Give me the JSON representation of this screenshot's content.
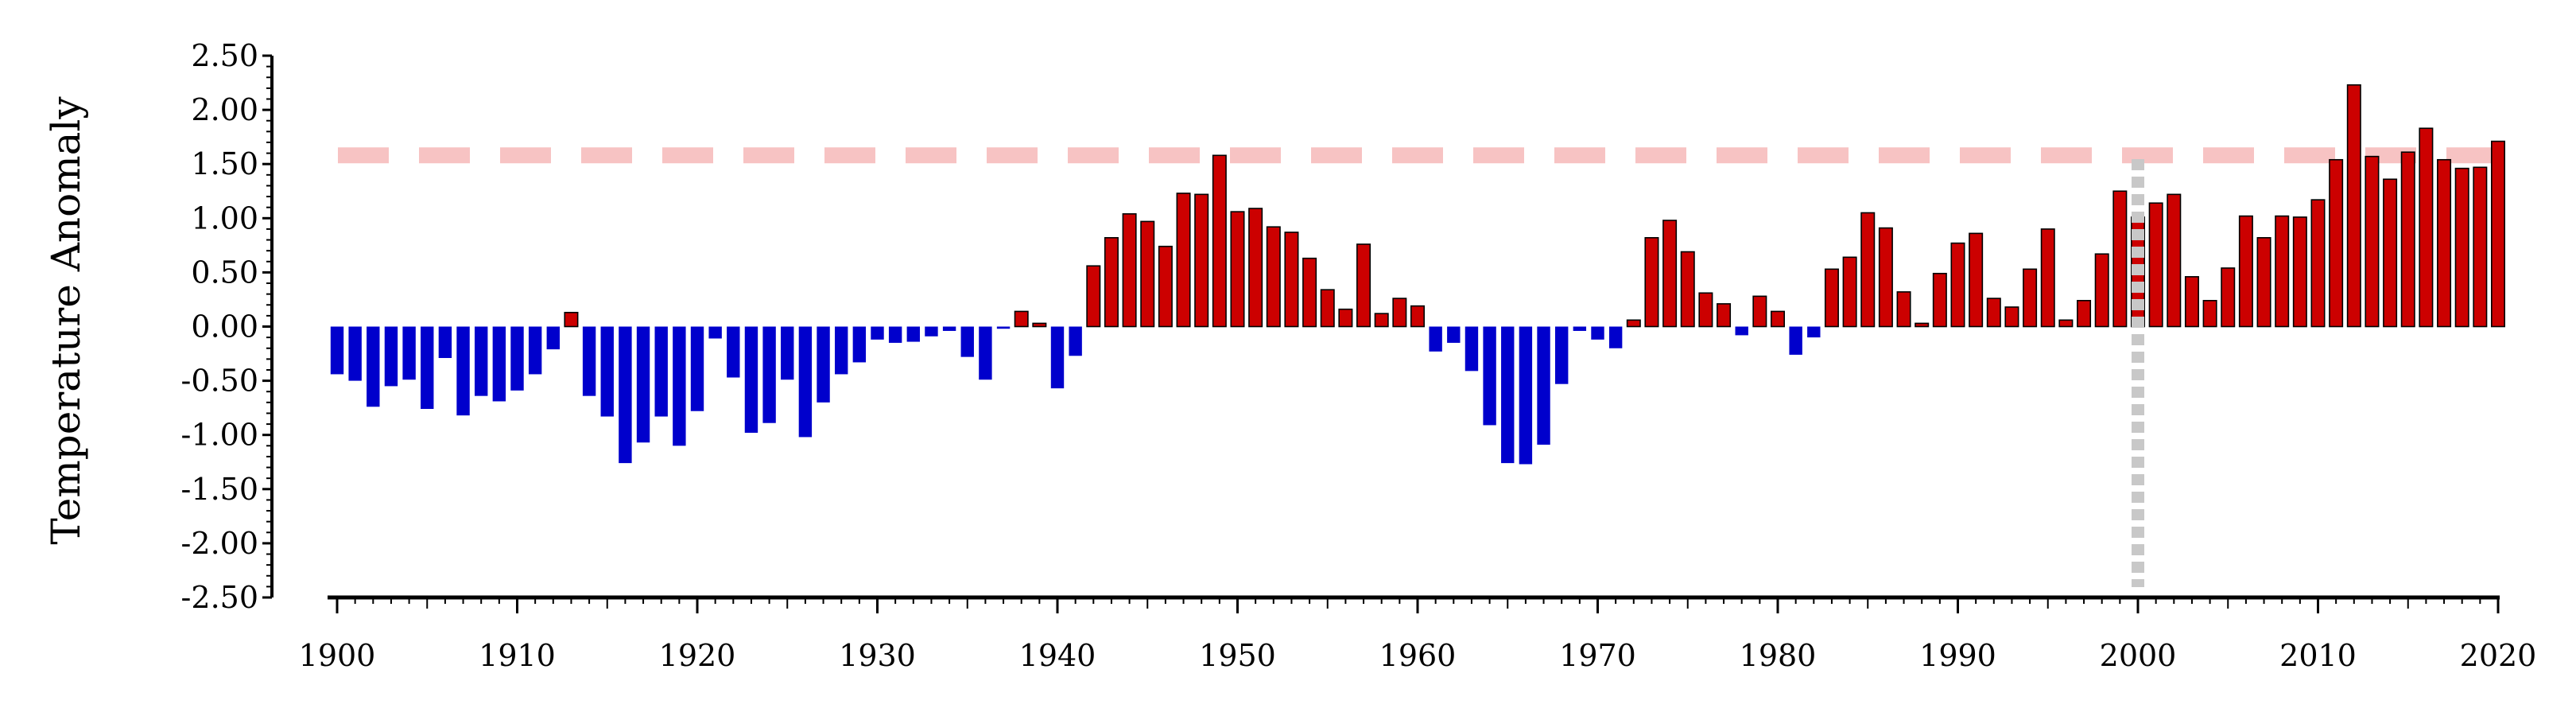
{
  "chart_data": {
    "type": "bar",
    "title": "",
    "xlabel": "",
    "ylabel": "Temperature Anomaly",
    "x": [
      1900,
      1901,
      1902,
      1903,
      1904,
      1905,
      1906,
      1907,
      1908,
      1909,
      1910,
      1911,
      1912,
      1913,
      1914,
      1915,
      1916,
      1917,
      1918,
      1919,
      1920,
      1921,
      1922,
      1923,
      1924,
      1925,
      1926,
      1927,
      1928,
      1929,
      1930,
      1931,
      1932,
      1933,
      1934,
      1935,
      1936,
      1937,
      1938,
      1939,
      1940,
      1941,
      1942,
      1943,
      1944,
      1945,
      1946,
      1947,
      1948,
      1949,
      1950,
      1951,
      1952,
      1953,
      1954,
      1955,
      1956,
      1957,
      1958,
      1959,
      1960,
      1961,
      1962,
      1963,
      1964,
      1965,
      1966,
      1967,
      1968,
      1969,
      1970,
      1971,
      1972,
      1973,
      1974,
      1975,
      1976,
      1977,
      1978,
      1979,
      1980,
      1981,
      1982,
      1983,
      1984,
      1985,
      1986,
      1987,
      1988,
      1989,
      1990,
      1991,
      1992,
      1993,
      1994,
      1995,
      1996,
      1997,
      1998,
      1999,
      2000,
      2001,
      2002,
      2003,
      2004,
      2005,
      2006,
      2007,
      2008,
      2009,
      2010,
      2011,
      2012,
      2013,
      2014,
      2015,
      2016,
      2017,
      2018,
      2019,
      2020
    ],
    "values": [
      -0.44,
      -0.5,
      -0.74,
      -0.55,
      -0.49,
      -0.76,
      -0.29,
      -0.82,
      -0.64,
      -0.69,
      -0.59,
      -0.44,
      -0.21,
      0.13,
      -0.64,
      -0.83,
      -1.26,
      -1.07,
      -0.83,
      -1.1,
      -0.78,
      -0.11,
      -0.47,
      -0.98,
      -0.89,
      -0.49,
      -1.02,
      -0.7,
      -0.44,
      -0.33,
      -0.12,
      -0.15,
      -0.14,
      -0.09,
      -0.04,
      -0.28,
      -0.49,
      -0.02,
      0.14,
      0.03,
      -0.57,
      -0.27,
      0.56,
      0.82,
      1.04,
      0.97,
      0.74,
      1.23,
      1.22,
      1.58,
      1.06,
      1.09,
      0.92,
      0.87,
      0.63,
      0.34,
      0.16,
      0.76,
      0.12,
      0.26,
      0.19,
      -0.23,
      -0.15,
      -0.41,
      -0.91,
      -1.26,
      -1.27,
      -1.09,
      -0.53,
      -0.04,
      -0.12,
      -0.2,
      0.06,
      0.82,
      0.98,
      0.69,
      0.31,
      0.21,
      -0.08,
      0.28,
      0.14,
      -0.26,
      -0.1,
      0.53,
      0.64,
      1.05,
      0.91,
      0.32,
      0.03,
      0.49,
      0.77,
      0.86,
      0.26,
      0.18,
      0.53,
      0.9,
      0.06,
      0.24,
      0.67,
      1.25,
      1.01,
      1.14,
      1.22,
      0.46,
      0.24,
      0.54,
      1.02,
      0.82,
      1.02,
      1.01,
      1.17,
      1.54,
      2.23,
      1.57,
      1.36,
      1.61,
      1.83,
      1.54,
      1.46,
      1.47,
      1.71
    ],
    "ylim": [
      -2.5,
      2.5
    ],
    "xlim": [
      1900,
      2020
    ],
    "yticks": [
      "2.50",
      "2.00",
      "1.50",
      "1.00",
      "0.50",
      "0.00",
      "-0.50",
      "-1.00",
      "-1.50",
      "-2.00",
      "-2.50"
    ],
    "xticks": [
      "1900",
      "1910",
      "1920",
      "1930",
      "1940",
      "1950",
      "1960",
      "1970",
      "1980",
      "1990",
      "2000",
      "2010",
      "2020"
    ],
    "threshold": 1.58,
    "marker_year": 2000,
    "grid": false,
    "colors": {
      "positive": "#cc0000",
      "negative": "#0000cc",
      "threshold": "#f7c3c3",
      "marker": "#c8c8c8",
      "axis": "#000000"
    }
  }
}
